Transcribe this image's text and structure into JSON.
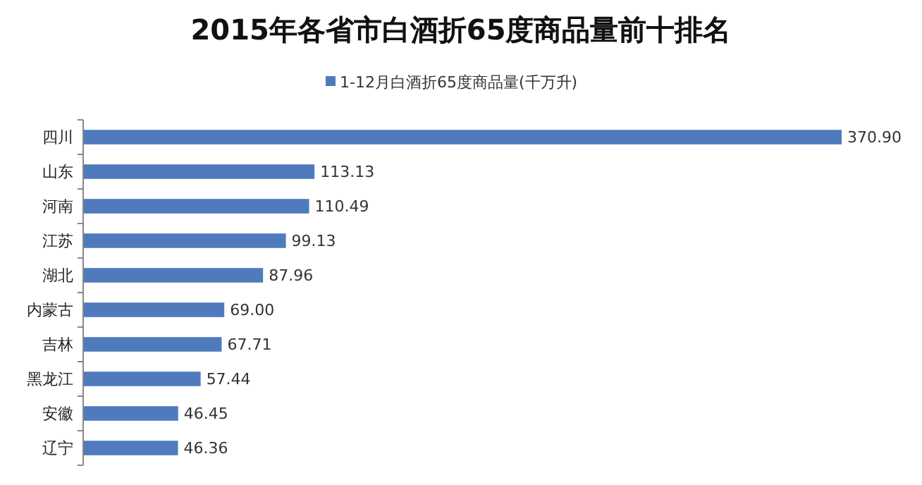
{
  "chart_data": {
    "type": "bar",
    "orientation": "horizontal",
    "title": "2015年各省市白酒折65度商品量前十排名",
    "categories": [
      "四川",
      "山东",
      "河南",
      "江苏",
      "湖北",
      "内蒙古",
      "吉林",
      "黑龙江",
      "安徽",
      "辽宁"
    ],
    "series": [
      {
        "name": "1-12月白酒折65度商品量(千万升)",
        "color": "#4f7bbd",
        "values": [
          370.9,
          113.13,
          110.49,
          99.13,
          87.96,
          69.0,
          67.71,
          57.44,
          46.45,
          46.36
        ],
        "value_labels": [
          "370.90",
          "113.13",
          "110.49",
          "99.13",
          "87.96",
          "69.00",
          "67.71",
          "57.44",
          "46.45",
          "46.36"
        ]
      }
    ],
    "legend": "top"
  }
}
